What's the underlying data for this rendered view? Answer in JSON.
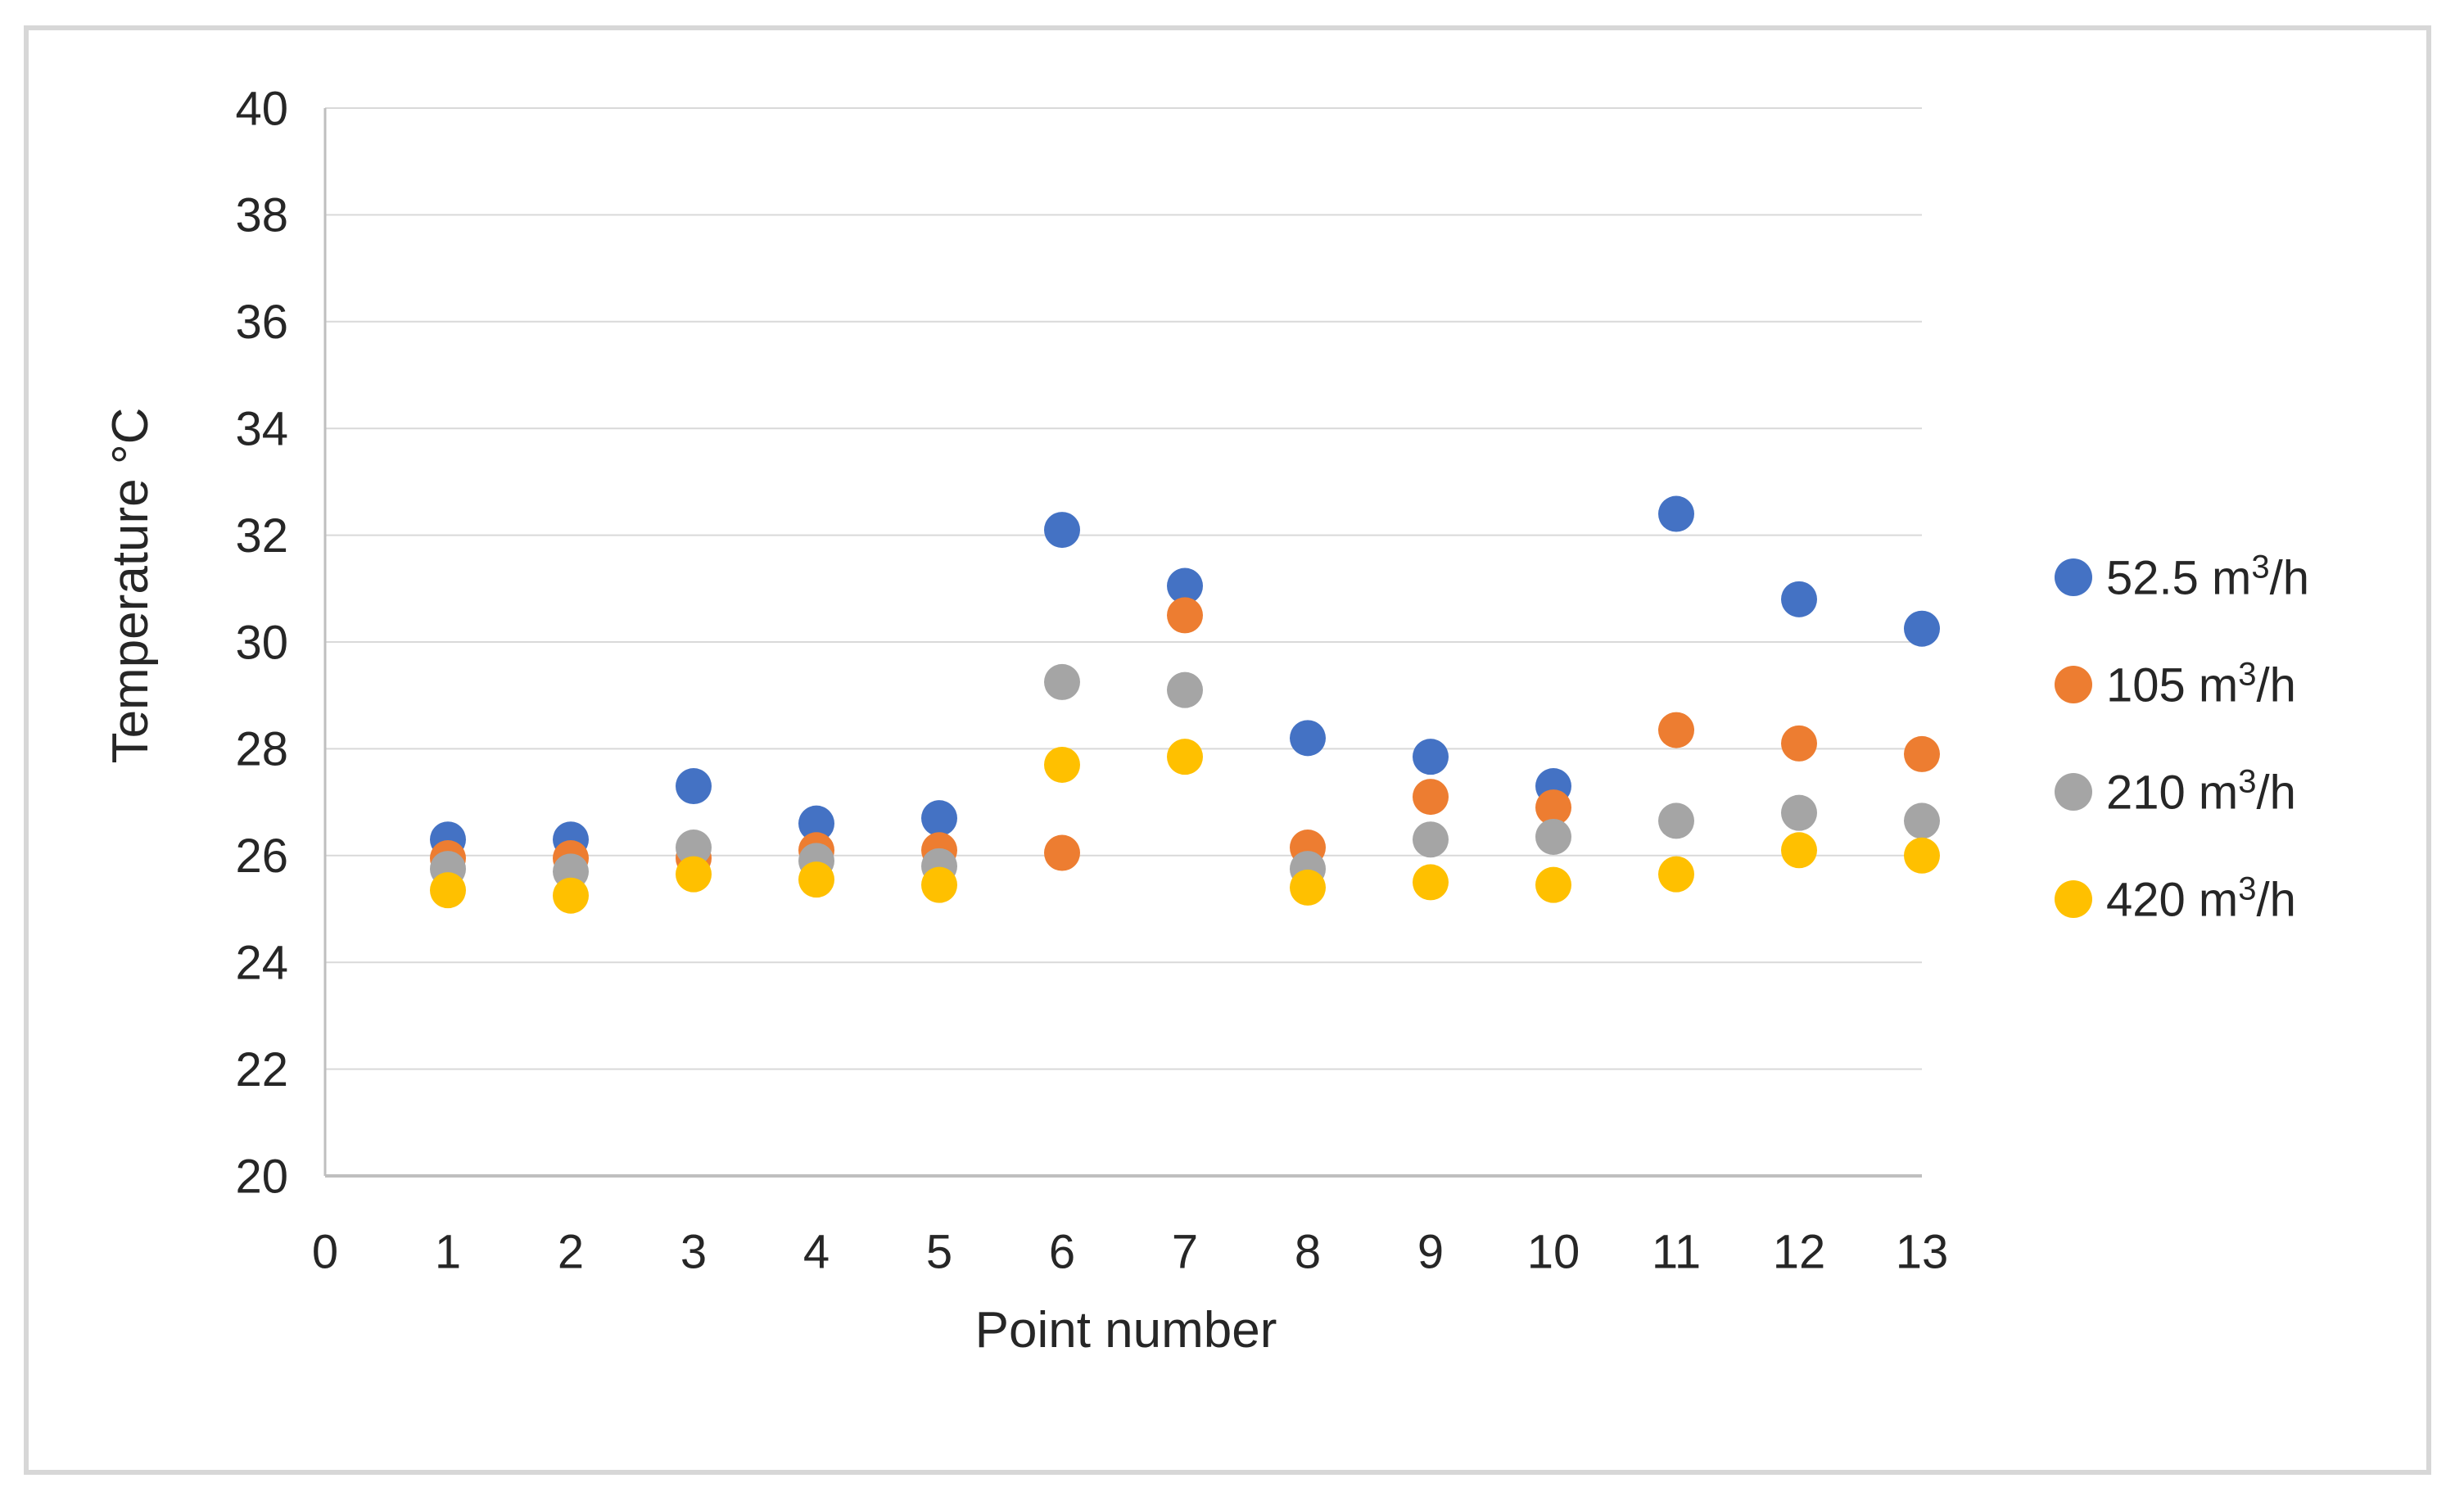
{
  "page": {
    "background": "#ffffff",
    "border_color": "#d7d7d7"
  },
  "chart_data": {
    "type": "scatter",
    "title": "",
    "xlabel": "Point number",
    "ylabel": "Temperature °C",
    "xlim": [
      0,
      13
    ],
    "ylim": [
      20,
      40
    ],
    "x_ticks": [
      0,
      1,
      2,
      3,
      4,
      5,
      6,
      7,
      8,
      9,
      10,
      11,
      12,
      13
    ],
    "y_ticks": [
      20,
      22,
      24,
      26,
      28,
      30,
      32,
      34,
      36,
      38,
      40
    ],
    "grid": "horizontal-only",
    "legend_position": "right",
    "marker": "circle",
    "axis_color": "#BFBFBF",
    "gridline_color": "#D9D9D9",
    "text_color": "#262626",
    "x": [
      1,
      2,
      3,
      4,
      5,
      6,
      7,
      8,
      9,
      10,
      11,
      12,
      13
    ],
    "series": [
      {
        "name": "52.5 m³/h",
        "legend_prefix": "52.5 m",
        "legend_sup": "3",
        "legend_suffix": "/h",
        "color": "#4472C4",
        "values": [
          26.3,
          26.3,
          27.3,
          26.6,
          26.7,
          32.1,
          31.05,
          28.2,
          27.85,
          27.3,
          32.4,
          30.8,
          30.25
        ]
      },
      {
        "name": "105 m³/h",
        "legend_prefix": "105 m",
        "legend_sup": "3",
        "legend_suffix": "/h",
        "color": "#ED7D31",
        "values": [
          25.95,
          25.95,
          25.95,
          26.1,
          26.1,
          26.05,
          30.5,
          26.15,
          27.1,
          26.9,
          28.35,
          28.1,
          27.9
        ]
      },
      {
        "name": "210 m³/h",
        "legend_prefix": "210 m",
        "legend_sup": "3",
        "legend_suffix": "/h",
        "color": "#A5A5A5",
        "values": [
          25.75,
          25.7,
          26.15,
          25.9,
          25.8,
          29.25,
          29.1,
          25.75,
          26.3,
          26.35,
          26.65,
          26.8,
          26.65
        ]
      },
      {
        "name": "420 m³/h",
        "legend_prefix": "420 m",
        "legend_sup": "3",
        "legend_suffix": "/h",
        "color": "#FFC000",
        "values": [
          25.35,
          25.25,
          25.65,
          25.55,
          25.45,
          27.7,
          27.85,
          25.4,
          25.5,
          25.45,
          25.65,
          26.1,
          26.0
        ]
      }
    ]
  }
}
